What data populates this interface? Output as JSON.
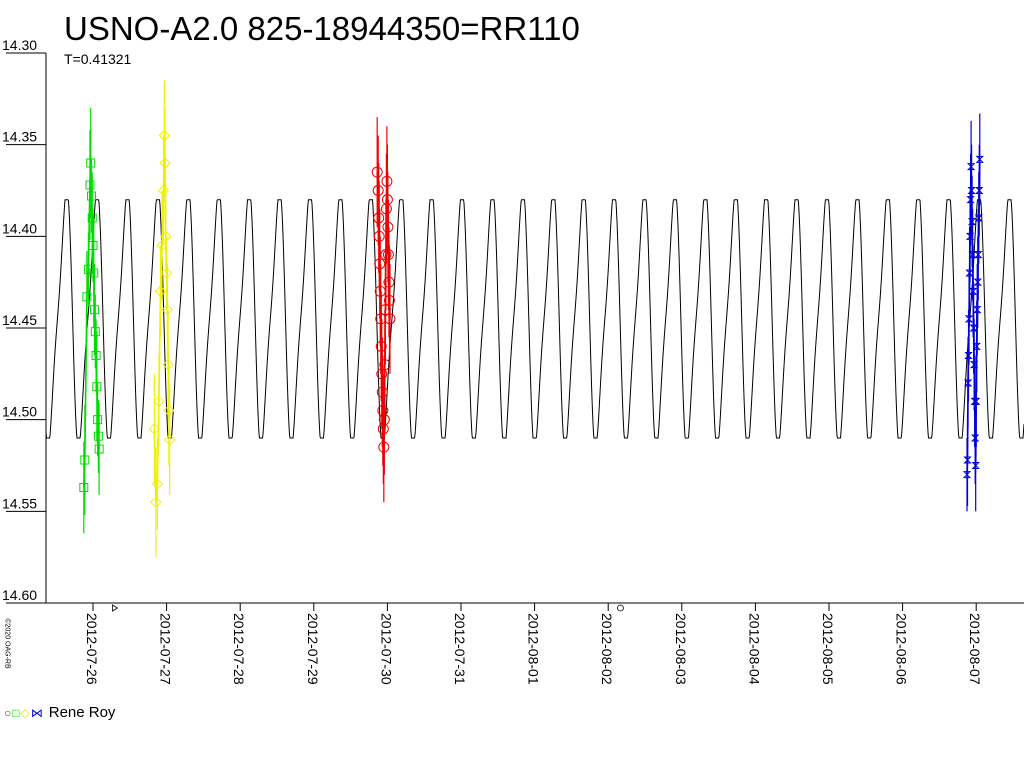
{
  "chart_data": {
    "type": "scatter",
    "title": "USNO-A2.0 825-18944350=RR110",
    "subtitle": "T=0.41321",
    "y_axis": {
      "inverted": true,
      "ylim": [
        14.3,
        14.6
      ],
      "tick_labels": [
        "14.30",
        "14.35",
        "14.40",
        "14.45",
        "14.50",
        "14.55",
        "14.60"
      ],
      "tick_values": [
        14.3,
        14.35,
        14.4,
        14.45,
        14.5,
        14.55,
        14.6
      ]
    },
    "x_axis": {
      "type": "date",
      "xlim": [
        "2012-07-25T00:00",
        "2012-08-08T00:00"
      ],
      "tick_labels": [
        "2012-07-26",
        "2012-07-27",
        "2012-07-28",
        "2012-07-29",
        "2012-07-30",
        "2012-07-31",
        "2012-08-01",
        "2012-08-02",
        "2012-08-03",
        "2012-08-04",
        "2012-08-05",
        "2012-08-06",
        "2012-08-07"
      ]
    },
    "grid": false,
    "model_curve": {
      "period_days": 0.41321,
      "mag_bright": 14.38,
      "mag_faint": 14.51,
      "color": "#000000"
    },
    "axis_markers": [
      {
        "x": "2012-07-26T07:00",
        "symbol": "triangle"
      },
      {
        "x": "2012-08-02T04:00",
        "symbol": "circle"
      }
    ],
    "series": [
      {
        "symbol": "square",
        "color": "#00dd00",
        "points": [
          {
            "x": "2012-07-25T21:00",
            "y": 14.537,
            "err": 0.025
          },
          {
            "x": "2012-07-25T21:20",
            "y": 14.522,
            "err": 0.03
          },
          {
            "x": "2012-07-25T22:00",
            "y": 14.433,
            "err": 0.025
          },
          {
            "x": "2012-07-25T22:30",
            "y": 14.418,
            "err": 0.02
          },
          {
            "x": "2012-07-25T23:00",
            "y": 14.372,
            "err": 0.03
          },
          {
            "x": "2012-07-25T23:15",
            "y": 14.36,
            "err": 0.03
          },
          {
            "x": "2012-07-25T23:30",
            "y": 14.378,
            "err": 0.02
          },
          {
            "x": "2012-07-25T23:45",
            "y": 14.39,
            "err": 0.025
          },
          {
            "x": "2012-07-26T00:00",
            "y": 14.405,
            "err": 0.02
          },
          {
            "x": "2012-07-26T00:15",
            "y": 14.42,
            "err": 0.03
          },
          {
            "x": "2012-07-26T00:30",
            "y": 14.44,
            "err": 0.025
          },
          {
            "x": "2012-07-26T00:45",
            "y": 14.452,
            "err": 0.02
          },
          {
            "x": "2012-07-26T01:00",
            "y": 14.465,
            "err": 0.02
          },
          {
            "x": "2012-07-26T01:15",
            "y": 14.482,
            "err": 0.03
          },
          {
            "x": "2012-07-26T01:30",
            "y": 14.5,
            "err": 0.02
          },
          {
            "x": "2012-07-26T01:45",
            "y": 14.509,
            "err": 0.02
          },
          {
            "x": "2012-07-26T02:00",
            "y": 14.516,
            "err": 0.025
          }
        ]
      },
      {
        "symbol": "diamond",
        "color": "#f0f000",
        "points": [
          {
            "x": "2012-07-26T20:00",
            "y": 14.505,
            "err": 0.03
          },
          {
            "x": "2012-07-26T20:30",
            "y": 14.545,
            "err": 0.03
          },
          {
            "x": "2012-07-26T21:00",
            "y": 14.535,
            "err": 0.025
          },
          {
            "x": "2012-07-26T21:30",
            "y": 14.49,
            "err": 0.025
          },
          {
            "x": "2012-07-26T22:00",
            "y": 14.43,
            "err": 0.025
          },
          {
            "x": "2012-07-26T22:30",
            "y": 14.405,
            "err": 0.03
          },
          {
            "x": "2012-07-26T23:00",
            "y": 14.375,
            "err": 0.03
          },
          {
            "x": "2012-07-26T23:15",
            "y": 14.345,
            "err": 0.03
          },
          {
            "x": "2012-07-26T23:30",
            "y": 14.36,
            "err": 0.03
          },
          {
            "x": "2012-07-26T23:45",
            "y": 14.4,
            "err": 0.02
          },
          {
            "x": "2012-07-27T00:00",
            "y": 14.42,
            "err": 0.02
          },
          {
            "x": "2012-07-27T00:15",
            "y": 14.44,
            "err": 0.025
          },
          {
            "x": "2012-07-27T00:30",
            "y": 14.47,
            "err": 0.03
          },
          {
            "x": "2012-07-27T00:45",
            "y": 14.495,
            "err": 0.03
          },
          {
            "x": "2012-07-27T01:00",
            "y": 14.511,
            "err": 0.03
          }
        ]
      },
      {
        "symbol": "circle",
        "color": "#ee0000",
        "points": [
          {
            "x": "2012-07-29T20:40",
            "y": 14.365,
            "err": 0.03
          },
          {
            "x": "2012-07-29T21:00",
            "y": 14.375,
            "err": 0.03
          },
          {
            "x": "2012-07-29T21:10",
            "y": 14.39,
            "err": 0.03
          },
          {
            "x": "2012-07-29T21:20",
            "y": 14.4,
            "err": 0.03
          },
          {
            "x": "2012-07-29T21:30",
            "y": 14.415,
            "err": 0.03
          },
          {
            "x": "2012-07-29T21:40",
            "y": 14.43,
            "err": 0.03
          },
          {
            "x": "2012-07-29T21:50",
            "y": 14.445,
            "err": 0.03
          },
          {
            "x": "2012-07-29T22:00",
            "y": 14.46,
            "err": 0.03
          },
          {
            "x": "2012-07-29T22:10",
            "y": 14.475,
            "err": 0.03
          },
          {
            "x": "2012-07-29T22:20",
            "y": 14.485,
            "err": 0.03
          },
          {
            "x": "2012-07-29T22:30",
            "y": 14.495,
            "err": 0.03
          },
          {
            "x": "2012-07-29T22:40",
            "y": 14.505,
            "err": 0.03
          },
          {
            "x": "2012-07-29T22:50",
            "y": 14.515,
            "err": 0.03
          },
          {
            "x": "2012-07-29T23:00",
            "y": 14.5,
            "err": 0.03
          },
          {
            "x": "2012-07-29T23:10",
            "y": 14.47,
            "err": 0.03
          },
          {
            "x": "2012-07-29T23:20",
            "y": 14.44,
            "err": 0.03
          },
          {
            "x": "2012-07-29T23:30",
            "y": 14.41,
            "err": 0.03
          },
          {
            "x": "2012-07-29T23:40",
            "y": 14.385,
            "err": 0.03
          },
          {
            "x": "2012-07-29T23:50",
            "y": 14.37,
            "err": 0.03
          },
          {
            "x": "2012-07-30T00:00",
            "y": 14.38,
            "err": 0.03
          },
          {
            "x": "2012-07-30T00:10",
            "y": 14.395,
            "err": 0.03
          },
          {
            "x": "2012-07-30T00:20",
            "y": 14.41,
            "err": 0.03
          },
          {
            "x": "2012-07-30T00:30",
            "y": 14.425,
            "err": 0.03
          },
          {
            "x": "2012-07-30T00:40",
            "y": 14.435,
            "err": 0.03
          },
          {
            "x": "2012-07-30T00:50",
            "y": 14.445,
            "err": 0.03
          }
        ]
      },
      {
        "symbol": "bowtie",
        "color": "#0000dd",
        "points": [
          {
            "x": "2012-08-06T21:00",
            "y": 14.53,
            "err": 0.02
          },
          {
            "x": "2012-08-06T21:10",
            "y": 14.522,
            "err": 0.025
          },
          {
            "x": "2012-08-06T21:20",
            "y": 14.48,
            "err": 0.025
          },
          {
            "x": "2012-08-06T21:30",
            "y": 14.465,
            "err": 0.025
          },
          {
            "x": "2012-08-06T21:40",
            "y": 14.445,
            "err": 0.025
          },
          {
            "x": "2012-08-06T21:50",
            "y": 14.42,
            "err": 0.025
          },
          {
            "x": "2012-08-06T22:00",
            "y": 14.4,
            "err": 0.025
          },
          {
            "x": "2012-08-06T22:10",
            "y": 14.38,
            "err": 0.025
          },
          {
            "x": "2012-08-06T22:20",
            "y": 14.362,
            "err": 0.025
          },
          {
            "x": "2012-08-06T22:30",
            "y": 14.375,
            "err": 0.025
          },
          {
            "x": "2012-08-06T22:40",
            "y": 14.392,
            "err": 0.025
          },
          {
            "x": "2012-08-06T22:50",
            "y": 14.41,
            "err": 0.025
          },
          {
            "x": "2012-08-06T23:00",
            "y": 14.43,
            "err": 0.025
          },
          {
            "x": "2012-08-06T23:10",
            "y": 14.45,
            "err": 0.025
          },
          {
            "x": "2012-08-06T23:20",
            "y": 14.47,
            "err": 0.025
          },
          {
            "x": "2012-08-06T23:30",
            "y": 14.49,
            "err": 0.025
          },
          {
            "x": "2012-08-06T23:40",
            "y": 14.51,
            "err": 0.025
          },
          {
            "x": "2012-08-06T23:50",
            "y": 14.525,
            "err": 0.025
          },
          {
            "x": "2012-08-07T00:00",
            "y": 14.49,
            "err": 0.025
          },
          {
            "x": "2012-08-07T00:10",
            "y": 14.46,
            "err": 0.025
          },
          {
            "x": "2012-08-07T00:20",
            "y": 14.44,
            "err": 0.025
          },
          {
            "x": "2012-08-07T00:30",
            "y": 14.425,
            "err": 0.025
          },
          {
            "x": "2012-08-07T00:40",
            "y": 14.41,
            "err": 0.025
          },
          {
            "x": "2012-08-07T00:50",
            "y": 14.39,
            "err": 0.025
          },
          {
            "x": "2012-08-07T01:00",
            "y": 14.375,
            "err": 0.025
          },
          {
            "x": "2012-08-07T01:10",
            "y": 14.358,
            "err": 0.025
          }
        ]
      }
    ],
    "legend": {
      "placement": "bottom-left",
      "symbols": [
        {
          "symbol": "circle",
          "color": "#ee0000"
        },
        {
          "symbol": "square",
          "color": "#00dd00"
        },
        {
          "symbol": "diamond",
          "color": "#f0f000"
        },
        {
          "symbol": "bowtie",
          "color": "#0000dd"
        }
      ],
      "label": "Rene Roy"
    },
    "copyright": "©2020 OAG-RB"
  },
  "legend_glyphs": {
    "circle": "○",
    "square": "□",
    "diamond": "◇",
    "bowtie": "⋈"
  }
}
